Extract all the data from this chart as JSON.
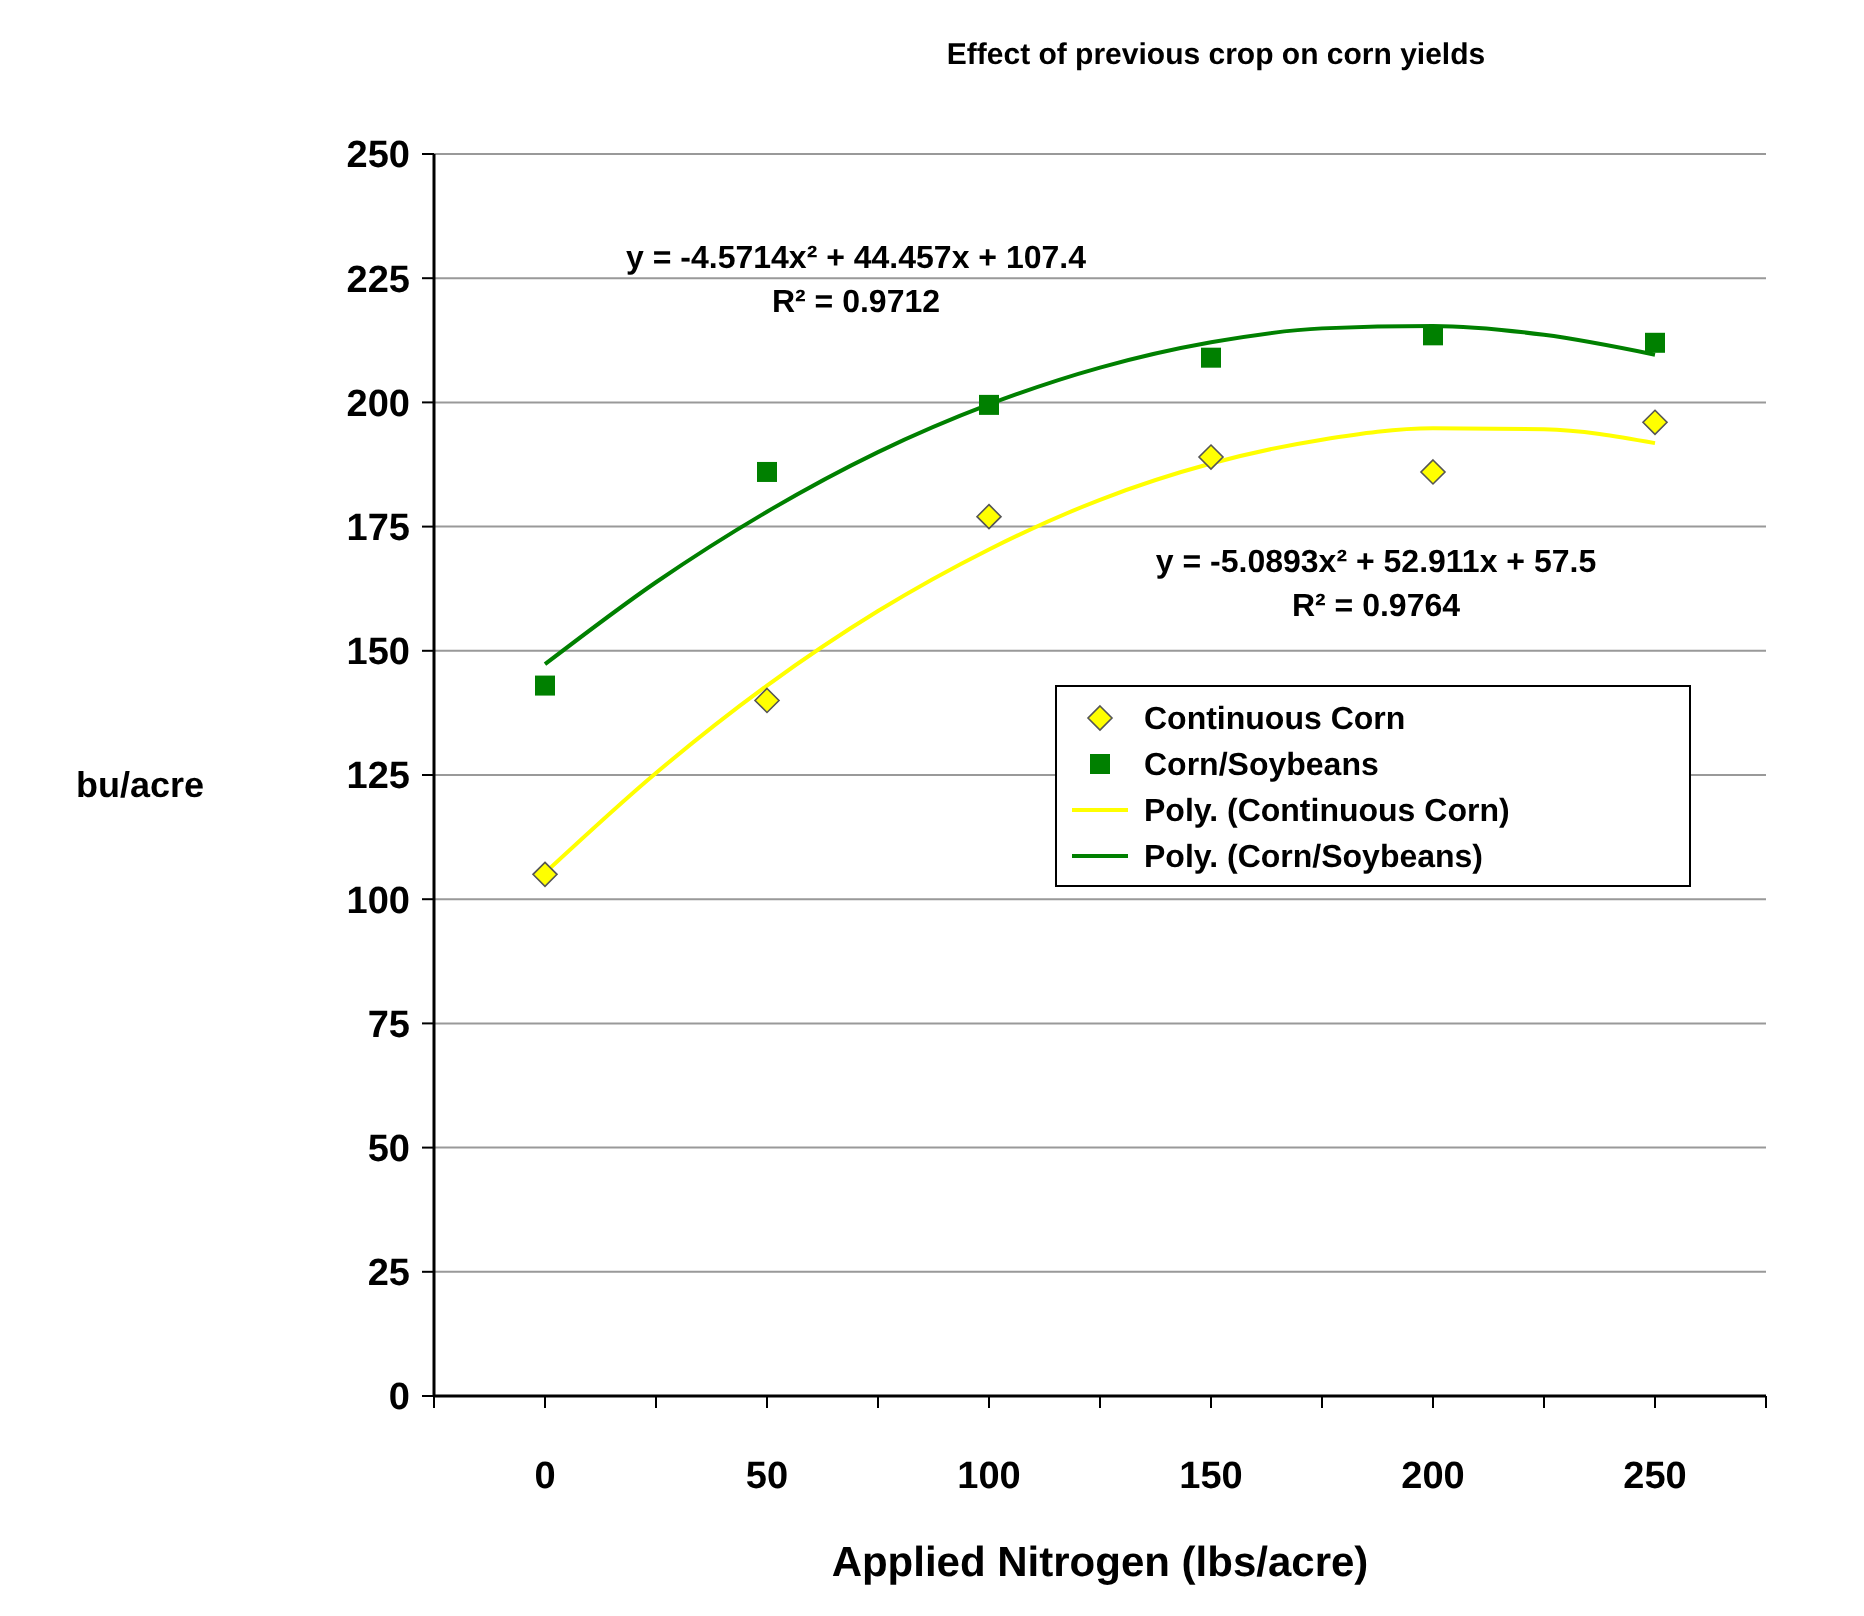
{
  "chart_data": {
    "type": "scatter",
    "title": "Effect of previous crop on corn yields",
    "xlabel": "Applied Nitrogen (lbs/acre)",
    "ylabel": "bu/acre",
    "xlim": [
      -25,
      275
    ],
    "xticks": [
      {
        "value": -25,
        "label": null
      },
      0,
      {
        "value": 25,
        "label": null
      },
      50,
      {
        "value": 75,
        "label": null
      },
      100,
      {
        "value": 125,
        "label": null
      },
      150,
      {
        "value": 175,
        "label": null
      },
      200,
      {
        "value": 225,
        "label": null
      },
      250,
      {
        "value": 275,
        "label": null
      }
    ],
    "ylim": [
      0,
      250
    ],
    "yticks": [
      0,
      25,
      50,
      75,
      100,
      125,
      150,
      175,
      200,
      225,
      250
    ],
    "grid": "y",
    "legend": "right",
    "annotations": [
      "y = -4.5714x² + 44.457x + 107.4",
      "R² = 0.9712",
      "y = -5.0893x² + 52.911x + 57.5",
      "R² = 0.9764"
    ],
    "series": [
      {
        "name": "Continuous Corn",
        "marker": "diamond",
        "color": "#ffff00",
        "x": [
          0,
          50,
          100,
          150,
          200,
          250
        ],
        "values": [
          105,
          140,
          177,
          189,
          186,
          196
        ]
      },
      {
        "name": "Corn/Soybeans",
        "marker": "square",
        "color": "#008000",
        "x": [
          0,
          50,
          100,
          150,
          200,
          250
        ],
        "values": [
          143,
          186,
          199.5,
          209,
          213.5,
          212
        ]
      },
      {
        "name": "Poly. (Continuous Corn)",
        "type": "line",
        "marker": "none",
        "color": "#ffff00",
        "x": [
          0,
          25,
          50,
          75,
          100,
          125,
          150,
          175,
          200,
          225,
          250
        ],
        "values": [
          105.3,
          125.4,
          143.0,
          158.0,
          170.4,
          180.4,
          187.7,
          192.5,
          194.8,
          194.6,
          191.8
        ]
      },
      {
        "name": "Poly. (Corn/Soybeans)",
        "type": "line",
        "marker": "none",
        "color": "#008000",
        "x": [
          0,
          25,
          50,
          75,
          100,
          125,
          150,
          175,
          200,
          225,
          250
        ],
        "values": [
          147.3,
          163.8,
          178.0,
          190.0,
          199.6,
          207.0,
          212.1,
          214.9,
          215.4,
          213.6,
          209.6
        ]
      }
    ]
  }
}
